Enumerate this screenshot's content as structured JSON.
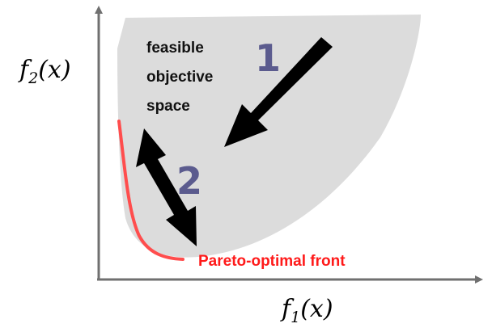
{
  "axes": {
    "y_label_base": "f",
    "y_label_sub": "2",
    "y_label_arg": "(x)",
    "x_label_base": "f",
    "x_label_sub": "1",
    "x_label_arg": "(x)"
  },
  "region": {
    "lines": [
      "feasible",
      "objective",
      "space"
    ],
    "color": "#dcdcdc"
  },
  "steps": {
    "one": "1",
    "two": "2",
    "color": "#5b5b8e"
  },
  "front": {
    "label": "Pareto-optimal front",
    "color": "#ff4d4d"
  }
}
